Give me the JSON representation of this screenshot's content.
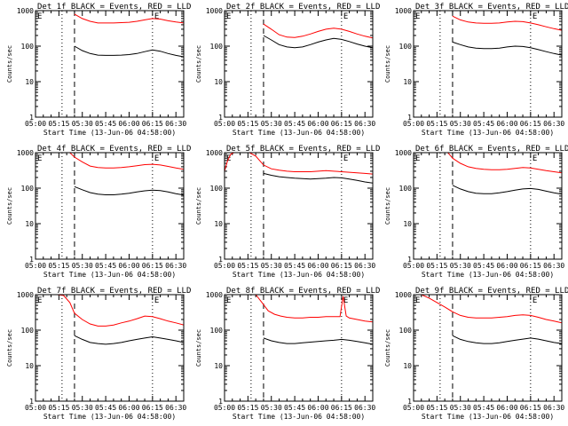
{
  "figure": {
    "ylabel": "Counts/sec",
    "xlabel": "Start Time (13-Jun-06 04:58:00)",
    "x_ticks": [
      "05:00",
      "05:15",
      "05:30",
      "05:45",
      "06:00",
      "06:15",
      "06:30"
    ],
    "y_ticks": [
      "1",
      "10",
      "100",
      "1000"
    ],
    "marker_text": "E"
  },
  "chart_data": [
    {
      "type": "line",
      "title": "Det 1f BLACK = Events, RED = LLD",
      "xlim": [
        0,
        95
      ],
      "ylim": [
        1,
        1000
      ],
      "yscale": "log",
      "vlines_dotted": [
        0,
        17,
        75
      ],
      "vlines_dashed": [
        25
      ],
      "series": [
        {
          "name": "RED",
          "color": "#ff0000",
          "x": [
            25,
            30,
            35,
            40,
            45,
            50,
            55,
            60,
            65,
            70,
            75,
            80,
            85,
            90,
            95
          ],
          "values": [
            800,
            600,
            500,
            450,
            450,
            450,
            460,
            470,
            500,
            550,
            600,
            580,
            520,
            480,
            450
          ]
        },
        {
          "name": "BLACK",
          "color": "#000000",
          "x": [
            25,
            30,
            35,
            40,
            45,
            50,
            55,
            60,
            65,
            70,
            75,
            80,
            85,
            90,
            95
          ],
          "values": [
            100,
            75,
            62,
            56,
            55,
            55,
            56,
            58,
            62,
            70,
            78,
            72,
            62,
            55,
            50
          ]
        }
      ]
    },
    {
      "type": "line",
      "title": "Det 2f BLACK = Events, RED = LLD",
      "xlim": [
        0,
        95
      ],
      "ylim": [
        1,
        1000
      ],
      "yscale": "log",
      "vlines_dotted": [
        0,
        17,
        75
      ],
      "vlines_dashed": [
        25
      ],
      "series": [
        {
          "name": "RED",
          "color": "#ff0000",
          "x": [
            25,
            30,
            35,
            40,
            45,
            50,
            55,
            60,
            65,
            70,
            75,
            80,
            85,
            90,
            95
          ],
          "values": [
            420,
            300,
            210,
            180,
            175,
            190,
            220,
            260,
            300,
            320,
            300,
            260,
            220,
            190,
            170
          ]
        },
        {
          "name": "BLACK",
          "color": "#000000",
          "x": [
            25,
            30,
            35,
            40,
            45,
            50,
            55,
            60,
            65,
            70,
            75,
            80,
            85,
            90,
            95
          ],
          "values": [
            200,
            150,
            110,
            95,
            90,
            95,
            110,
            130,
            150,
            165,
            155,
            135,
            115,
            100,
            90
          ]
        }
      ]
    },
    {
      "type": "line",
      "title": "Det 3f BLACK = Events, RED = LLD",
      "xlim": [
        0,
        95
      ],
      "ylim": [
        1,
        1000
      ],
      "yscale": "log",
      "vlines_dotted": [
        0,
        17,
        75
      ],
      "vlines_dashed": [
        25
      ],
      "series": [
        {
          "name": "RED",
          "color": "#ff0000",
          "x": [
            25,
            30,
            35,
            40,
            45,
            50,
            55,
            60,
            65,
            70,
            75,
            80,
            85,
            90,
            95
          ],
          "values": [
            700,
            550,
            480,
            450,
            440,
            440,
            450,
            480,
            500,
            490,
            450,
            400,
            350,
            310,
            280
          ]
        },
        {
          "name": "BLACK",
          "color": "#000000",
          "x": [
            25,
            30,
            35,
            40,
            45,
            50,
            55,
            60,
            65,
            70,
            75,
            80,
            85,
            90,
            95
          ],
          "values": [
            130,
            110,
            95,
            88,
            85,
            85,
            88,
            95,
            100,
            98,
            90,
            80,
            70,
            62,
            56
          ]
        }
      ]
    },
    {
      "type": "line",
      "title": "Det 4f BLACK = Events, RED = LLD",
      "xlim": [
        0,
        95
      ],
      "ylim": [
        1,
        1000
      ],
      "yscale": "log",
      "vlines_dotted": [
        0,
        17,
        75
      ],
      "vlines_dashed": [
        25
      ],
      "series": [
        {
          "name": "RED",
          "color": "#ff0000",
          "x": [
            22,
            25,
            30,
            35,
            40,
            45,
            50,
            55,
            60,
            65,
            70,
            75,
            80,
            85,
            90,
            95
          ],
          "values": [
            1000,
            750,
            550,
            420,
            380,
            370,
            370,
            380,
            400,
            430,
            460,
            470,
            450,
            410,
            370,
            340
          ]
        },
        {
          "name": "BLACK",
          "color": "#000000",
          "x": [
            25,
            30,
            35,
            40,
            45,
            50,
            55,
            60,
            65,
            70,
            75,
            80,
            85,
            90,
            95
          ],
          "values": [
            110,
            90,
            75,
            68,
            65,
            65,
            68,
            72,
            78,
            84,
            88,
            85,
            78,
            70,
            64
          ]
        }
      ]
    },
    {
      "type": "line",
      "title": "Det 5f BLACK = Events, RED = LLD",
      "xlim": [
        0,
        95
      ],
      "ylim": [
        1,
        1000
      ],
      "yscale": "log",
      "vlines_dotted": [
        0,
        17,
        75
      ],
      "vlines_dashed": [
        25
      ],
      "series": [
        {
          "name": "RED",
          "color": "#ff0000",
          "x": [
            0,
            2,
            4,
            6,
            8,
            12,
            16,
            20,
            25,
            30,
            35,
            40,
            45,
            50,
            55,
            60,
            65,
            70,
            75,
            80,
            85,
            90,
            95
          ],
          "values": [
            300,
            600,
            900,
            1000,
            1000,
            1000,
            1000,
            800,
            450,
            350,
            320,
            300,
            290,
            290,
            290,
            300,
            310,
            300,
            290,
            280,
            270,
            260,
            250
          ]
        },
        {
          "name": "BLACK",
          "color": "#000000",
          "x": [
            25,
            30,
            35,
            40,
            45,
            50,
            55,
            60,
            65,
            70,
            75,
            80,
            85,
            90,
            95
          ],
          "values": [
            260,
            230,
            210,
            200,
            190,
            185,
            180,
            185,
            190,
            200,
            195,
            180,
            165,
            150,
            140
          ]
        }
      ]
    },
    {
      "type": "line",
      "title": "Det 6f BLACK = Events, RED = LLD",
      "xlim": [
        0,
        95
      ],
      "ylim": [
        1,
        1000
      ],
      "yscale": "log",
      "vlines_dotted": [
        0,
        17,
        75
      ],
      "vlines_dashed": [
        25
      ],
      "series": [
        {
          "name": "RED",
          "color": "#ff0000",
          "x": [
            22,
            25,
            30,
            35,
            40,
            45,
            50,
            55,
            60,
            65,
            70,
            75,
            80,
            85,
            90,
            95
          ],
          "values": [
            1000,
            700,
            500,
            400,
            360,
            340,
            330,
            330,
            340,
            360,
            380,
            370,
            340,
            310,
            290,
            270
          ]
        },
        {
          "name": "BLACK",
          "color": "#000000",
          "x": [
            25,
            30,
            35,
            40,
            45,
            50,
            55,
            60,
            65,
            70,
            75,
            80,
            85,
            90,
            95
          ],
          "values": [
            120,
            95,
            80,
            72,
            70,
            70,
            74,
            80,
            88,
            95,
            98,
            92,
            82,
            74,
            68
          ]
        }
      ]
    },
    {
      "type": "line",
      "title": "Det 7f BLACK = Events, RED = LLD",
      "xlim": [
        0,
        95
      ],
      "ylim": [
        1,
        1000
      ],
      "yscale": "log",
      "vlines_dotted": [
        0,
        17,
        75
      ],
      "vlines_dashed": [
        25
      ],
      "series": [
        {
          "name": "RED",
          "color": "#ff0000",
          "x": [
            0,
            3,
            6,
            10,
            14,
            18,
            22,
            25,
            30,
            35,
            40,
            45,
            50,
            55,
            60,
            65,
            70,
            75,
            80,
            85,
            90,
            95
          ],
          "values": [
            1000,
            1000,
            1000,
            1000,
            1000,
            950,
            600,
            300,
            200,
            150,
            130,
            130,
            140,
            160,
            180,
            210,
            250,
            240,
            210,
            180,
            160,
            140
          ]
        },
        {
          "name": "BLACK",
          "color": "#000000",
          "x": [
            25,
            30,
            35,
            40,
            45,
            50,
            55,
            60,
            65,
            70,
            75,
            80,
            85,
            90,
            95
          ],
          "values": [
            70,
            55,
            45,
            42,
            40,
            42,
            45,
            50,
            55,
            60,
            65,
            60,
            55,
            50,
            45
          ]
        }
      ]
    },
    {
      "type": "line",
      "title": "Det 8f BLACK = Events, RED = LLD",
      "xlim": [
        0,
        95
      ],
      "ylim": [
        1,
        1000
      ],
      "yscale": "log",
      "vlines_dotted": [
        0,
        17,
        75
      ],
      "vlines_dashed": [
        25
      ],
      "series": [
        {
          "name": "RED",
          "color": "#ff0000",
          "x": [
            20,
            24,
            28,
            32,
            36,
            40,
            45,
            50,
            55,
            60,
            65,
            70,
            74,
            76,
            78,
            80,
            85,
            90,
            95
          ],
          "values": [
            1000,
            600,
            350,
            280,
            250,
            230,
            220,
            220,
            230,
            230,
            240,
            240,
            240,
            900,
            250,
            220,
            200,
            180,
            170
          ]
        },
        {
          "name": "BLACK",
          "color": "#000000",
          "x": [
            25,
            30,
            35,
            40,
            45,
            50,
            55,
            60,
            65,
            70,
            75,
            80,
            85,
            90,
            95
          ],
          "values": [
            60,
            50,
            45,
            42,
            42,
            44,
            46,
            48,
            50,
            52,
            55,
            52,
            48,
            44,
            40
          ]
        }
      ]
    },
    {
      "type": "line",
      "title": "Det 9f BLACK = Events, RED = LLD",
      "xlim": [
        0,
        95
      ],
      "ylim": [
        1,
        1000
      ],
      "yscale": "log",
      "vlines_dotted": [
        0,
        17,
        75
      ],
      "vlines_dashed": [
        25
      ],
      "series": [
        {
          "name": "RED",
          "color": "#ff0000",
          "x": [
            0,
            5,
            10,
            15,
            20,
            25,
            30,
            35,
            40,
            45,
            50,
            55,
            60,
            65,
            70,
            75,
            80,
            85,
            90,
            95
          ],
          "values": [
            1000,
            1000,
            800,
            600,
            450,
            330,
            260,
            230,
            220,
            220,
            220,
            230,
            240,
            260,
            270,
            260,
            230,
            200,
            180,
            160
          ]
        },
        {
          "name": "BLACK",
          "color": "#000000",
          "x": [
            25,
            30,
            35,
            40,
            45,
            50,
            55,
            60,
            65,
            70,
            75,
            80,
            85,
            90,
            95
          ],
          "values": [
            70,
            55,
            48,
            44,
            42,
            42,
            44,
            48,
            52,
            56,
            60,
            56,
            50,
            45,
            42
          ]
        }
      ]
    }
  ]
}
